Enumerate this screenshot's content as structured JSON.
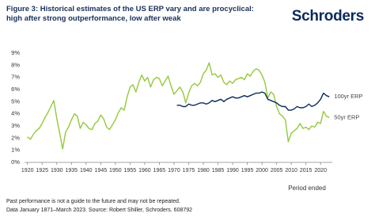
{
  "header": {
    "logo": "Schroders"
  },
  "chart_data": {
    "type": "line",
    "title": "Figure 3: Historical estimates of the US ERP vary and are procyclical: high after strong outperformance, low after weak",
    "x_label": "Period ended",
    "x": [
      1920,
      1921,
      1922,
      1923,
      1924,
      1925,
      1926,
      1927,
      1928,
      1929,
      1930,
      1931,
      1932,
      1933,
      1934,
      1935,
      1936,
      1937,
      1938,
      1939,
      1940,
      1941,
      1942,
      1943,
      1944,
      1945,
      1946,
      1947,
      1948,
      1949,
      1950,
      1951,
      1952,
      1953,
      1954,
      1955,
      1956,
      1957,
      1958,
      1959,
      1960,
      1961,
      1962,
      1963,
      1964,
      1965,
      1966,
      1967,
      1968,
      1969,
      1970,
      1971,
      1972,
      1973,
      1974,
      1975,
      1976,
      1977,
      1978,
      1979,
      1980,
      1981,
      1982,
      1983,
      1984,
      1985,
      1986,
      1987,
      1988,
      1989,
      1990,
      1991,
      1992,
      1993,
      1994,
      1995,
      1996,
      1997,
      1998,
      1999,
      2000,
      2001,
      2002,
      2003,
      2004,
      2005,
      2006,
      2007,
      2008,
      2009,
      2010,
      2011,
      2012,
      2013,
      2014,
      2015,
      2016,
      2017,
      2018,
      2019,
      2020,
      2021,
      2022,
      2023
    ],
    "series": [
      {
        "name": "50yr ERP",
        "color": "#94c93d",
        "values": [
          2.1,
          1.9,
          2.3,
          2.6,
          2.8,
          3.2,
          3.7,
          4.1,
          4.6,
          5.1,
          3.6,
          2.4,
          1.1,
          2.5,
          2.9,
          3.5,
          4.0,
          3.8,
          2.8,
          3.3,
          3.1,
          2.8,
          2.7,
          3.2,
          3.4,
          3.9,
          3.6,
          2.9,
          2.7,
          3.1,
          3.5,
          4.1,
          4.5,
          4.3,
          5.4,
          6.2,
          6.4,
          5.8,
          6.6,
          7.2,
          6.7,
          7.0,
          6.2,
          6.8,
          7.0,
          6.9,
          6.3,
          6.7,
          7.1,
          6.3,
          5.6,
          5.9,
          6.2,
          5.8,
          4.9,
          5.7,
          6.3,
          6.5,
          6.3,
          6.6,
          7.3,
          7.6,
          8.2,
          7.2,
          7.3,
          7.0,
          7.2,
          6.6,
          6.4,
          6.7,
          6.5,
          6.8,
          6.9,
          7.0,
          6.8,
          7.3,
          7.1,
          7.5,
          7.7,
          7.6,
          7.2,
          6.6,
          5.3,
          5.8,
          5.6,
          4.6,
          4.0,
          3.8,
          3.5,
          1.7,
          2.4,
          2.6,
          2.8,
          3.2,
          2.8,
          2.9,
          2.7,
          3.0,
          2.9,
          3.3,
          3.2,
          4.2,
          3.8,
          3.7
        ]
      },
      {
        "name": "100yr ERP",
        "color": "#0b2a5b",
        "values": [
          null,
          null,
          null,
          null,
          null,
          null,
          null,
          null,
          null,
          null,
          null,
          null,
          null,
          null,
          null,
          null,
          null,
          null,
          null,
          null,
          null,
          null,
          null,
          null,
          null,
          null,
          null,
          null,
          null,
          null,
          null,
          null,
          null,
          null,
          null,
          null,
          null,
          null,
          null,
          null,
          null,
          null,
          null,
          null,
          null,
          null,
          null,
          null,
          null,
          null,
          null,
          4.7,
          4.7,
          4.6,
          4.6,
          4.8,
          4.7,
          4.7,
          4.8,
          4.9,
          4.9,
          4.8,
          4.9,
          5.1,
          5.0,
          5.1,
          5.2,
          5.0,
          5.2,
          5.3,
          5.4,
          5.3,
          5.3,
          5.4,
          5.5,
          5.4,
          5.5,
          5.6,
          5.7,
          5.7,
          5.8,
          5.7,
          5.2,
          5.1,
          5.0,
          4.9,
          4.7,
          4.6,
          4.6,
          4.3,
          4.3,
          4.4,
          4.6,
          4.5,
          4.5,
          4.6,
          4.8,
          4.6,
          4.7,
          4.9,
          5.2,
          5.7,
          5.5,
          5.4
        ]
      }
    ],
    "xlim": [
      1919,
      2024
    ],
    "xticks": [
      1920,
      1925,
      1930,
      1935,
      1940,
      1945,
      1950,
      1955,
      1960,
      1965,
      1970,
      1975,
      1980,
      1985,
      1990,
      1995,
      2000,
      2005,
      2010,
      2015,
      2020
    ],
    "ylim": [
      0,
      9
    ],
    "yticks": [
      {
        "value": 0,
        "label": "0%"
      },
      {
        "value": 1,
        "label": "1%"
      },
      {
        "value": 2,
        "label": "2%"
      },
      {
        "value": 3,
        "label": "3%"
      },
      {
        "value": 4,
        "label": "4%"
      },
      {
        "value": 5,
        "label": "5%"
      },
      {
        "value": 6,
        "label": "6%"
      },
      {
        "value": 7,
        "label": "7%"
      },
      {
        "value": 8,
        "label": "8%"
      },
      {
        "value": 9,
        "label": "9%"
      }
    ],
    "grid": false
  },
  "footer": {
    "lines": [
      "Past performance is not a guide to the future and may not be repeated.",
      "Data January 1871–March 2023. Source: Robert Shiller, Schroders. 608792"
    ]
  }
}
